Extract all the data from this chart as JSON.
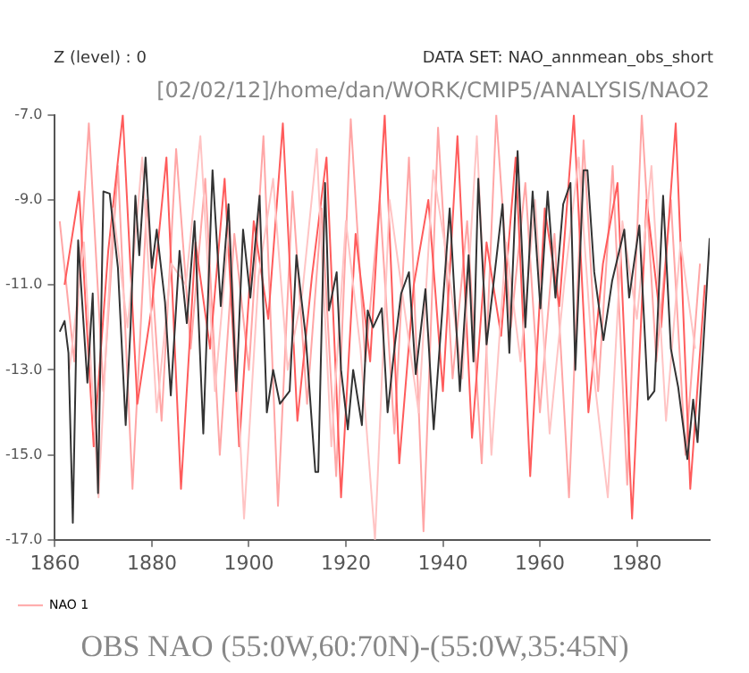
{
  "chart_data": {
    "type": "line",
    "title": "OBS NAO (55:0W,60:70N)-(55:0W,35:45N)",
    "subtitle": "[02/02/12]/home/dan/WORK/CMIP5/ANALYSIS/NAO2",
    "annotations": [
      "Z (level) : 0",
      "DATA SET: NAO_annmean_obs_short"
    ],
    "xlim": [
      1860,
      1995
    ],
    "xticks": [
      1860,
      1880,
      1900,
      1920,
      1940,
      1960,
      1980
    ],
    "ylim": [
      -17,
      -7
    ],
    "yticks": [
      {
        "value": -17,
        "label": "-17.0"
      },
      {
        "value": -15,
        "label": "-15.0"
      },
      {
        "value": -13,
        "label": "-13.0"
      },
      {
        "value": -11,
        "label": "-11.0"
      },
      {
        "value": -9,
        "label": "-9.0"
      },
      {
        "value": -7,
        "label": "-7.0"
      }
    ],
    "grid": false,
    "legend": "bottom left",
    "marker": "none",
    "line_style": "solid",
    "series": [
      {
        "name": "NAO 1",
        "color": "#ffa6a6",
        "x": [
          1861,
          1864,
          1867,
          1870,
          1873,
          1876,
          1879,
          1882,
          1885,
          1888,
          1891,
          1894,
          1897,
          1900,
          1903,
          1906,
          1909,
          1912,
          1915,
          1918,
          1921,
          1924,
          1927,
          1930,
          1933,
          1936,
          1939,
          1942,
          1945,
          1948,
          1951,
          1954,
          1957,
          1960,
          1963,
          1966,
          1969,
          1972,
          1975,
          1978,
          1981,
          1984,
          1987,
          1990,
          1993
        ],
        "values": [
          -9.5,
          -12.8,
          -7.2,
          -13.5,
          -8.2,
          -15.8,
          -9.0,
          -14.2,
          -7.8,
          -12.5,
          -8.5,
          -15.0,
          -9.8,
          -13.0,
          -7.5,
          -16.2,
          -8.8,
          -13.8,
          -9.2,
          -15.5,
          -7.1,
          -12.8,
          -9.0,
          -14.5,
          -8.0,
          -16.8,
          -7.3,
          -13.2,
          -9.5,
          -15.2,
          -7.0,
          -12.0,
          -8.6,
          -14.0,
          -9.8,
          -16.0,
          -7.6,
          -13.5,
          -8.2,
          -15.7,
          -7.0,
          -12.8,
          -9.0,
          -15.0,
          -10.5
        ]
      },
      {
        "color": "#ff5c5c",
        "x": [
          1862,
          1865,
          1868,
          1871,
          1874,
          1877,
          1880,
          1883,
          1886,
          1889,
          1892,
          1895,
          1898,
          1901,
          1904,
          1907,
          1910,
          1913,
          1916,
          1919,
          1922,
          1925,
          1928,
          1931,
          1934,
          1937,
          1940,
          1943,
          1946,
          1949,
          1952,
          1955,
          1958,
          1961,
          1964,
          1967,
          1970,
          1973,
          1976,
          1979,
          1982,
          1985,
          1988,
          1991,
          1994
        ],
        "values": [
          -11.0,
          -8.8,
          -14.8,
          -10.2,
          -7.0,
          -13.8,
          -11.5,
          -8.0,
          -15.8,
          -10.0,
          -12.5,
          -8.5,
          -14.8,
          -9.5,
          -11.8,
          -7.2,
          -14.2,
          -10.8,
          -8.0,
          -16.0,
          -9.8,
          -12.8,
          -7.0,
          -15.2,
          -11.0,
          -9.0,
          -13.5,
          -7.5,
          -14.6,
          -10.0,
          -12.2,
          -8.0,
          -15.5,
          -9.2,
          -11.5,
          -7.0,
          -14.0,
          -10.5,
          -8.6,
          -16.5,
          -9.0,
          -12.0,
          -7.2,
          -15.8,
          -11.0
        ]
      },
      {
        "color": "#ffc4c4",
        "x": [
          1863,
          1866,
          1869,
          1872,
          1875,
          1878,
          1881,
          1884,
          1887,
          1890,
          1893,
          1896,
          1899,
          1902,
          1905,
          1908,
          1911,
          1914,
          1917,
          1920,
          1923,
          1926,
          1929,
          1932,
          1935,
          1938,
          1941,
          1944,
          1947,
          1950,
          1953,
          1956,
          1959,
          1962,
          1965,
          1968,
          1971,
          1974,
          1977,
          1980,
          1983,
          1986,
          1989,
          1992
        ],
        "values": [
          -13.0,
          -10.0,
          -16.0,
          -9.2,
          -12.0,
          -8.0,
          -14.0,
          -10.5,
          -11.0,
          -7.5,
          -13.5,
          -9.5,
          -16.5,
          -10.8,
          -8.5,
          -13.0,
          -11.2,
          -7.8,
          -14.8,
          -9.5,
          -12.5,
          -17.0,
          -9.0,
          -11.5,
          -14.0,
          -8.3,
          -10.5,
          -13.2,
          -7.5,
          -15.0,
          -10.0,
          -12.8,
          -9.0,
          -14.5,
          -11.0,
          -8.0,
          -13.0,
          -16.0,
          -9.5,
          -11.8,
          -8.2,
          -14.2,
          -10.0,
          -12.5
        ]
      },
      {
        "color": "#333333",
        "x": [
          1861,
          1862,
          1862.8,
          1863.7,
          1864.8,
          1866.7,
          1867.8,
          1868.9,
          1870,
          1871.3,
          1873,
          1874.6,
          1875.6,
          1876.6,
          1877.4,
          1878.7,
          1880,
          1881,
          1882.7,
          1883.9,
          1885.7,
          1887.2,
          1888.8,
          1890.6,
          1892.5,
          1894.2,
          1895.8,
          1897.4,
          1898.8,
          1900.3,
          1902.2,
          1903.7,
          1905,
          1906.4,
          1908.4,
          1909.8,
          1911.7,
          1913.7,
          1914.3,
          1915.7,
          1916.5,
          1918.1,
          1919,
          1920.4,
          1921.5,
          1923.3,
          1924.5,
          1925.6,
          1927.4,
          1928.6,
          1930.1,
          1931.4,
          1933,
          1934.4,
          1936.4,
          1938.1,
          1941.4,
          1943.5,
          1945.3,
          1946.3,
          1947.3,
          1949,
          1952.3,
          1953.7,
          1955.4,
          1957,
          1958.5,
          1960.1,
          1961.6,
          1963.2,
          1964.8,
          1966.3,
          1967.3,
          1969,
          1969.8,
          1971.2,
          1973.1,
          1974.9,
          1977.4,
          1978.4,
          1980.5,
          1982.3,
          1983.6,
          1985.4,
          1987,
          1988.5,
          1990.4,
          1991.6,
          1992.5,
          1993.7,
          1995
        ],
        "values": [
          -12.1,
          -11.85,
          -12.6,
          -16.6,
          -9.95,
          -13.3,
          -11.2,
          -15.9,
          -8.8,
          -8.85,
          -10.6,
          -14.3,
          -12.0,
          -8.9,
          -10.3,
          -8.0,
          -10.6,
          -9.7,
          -11.4,
          -13.6,
          -10.2,
          -11.9,
          -9.5,
          -14.5,
          -8.3,
          -11.5,
          -9.1,
          -13.5,
          -9.7,
          -11.3,
          -8.9,
          -14.0,
          -13.0,
          -13.8,
          -13.5,
          -10.3,
          -12.2,
          -15.4,
          -15.4,
          -8.6,
          -11.6,
          -10.7,
          -13.0,
          -14.4,
          -13.0,
          -14.3,
          -11.6,
          -12.0,
          -11.55,
          -14.0,
          -12.4,
          -11.2,
          -10.7,
          -13.1,
          -11.1,
          -14.4,
          -9.2,
          -13.5,
          -10.3,
          -12.8,
          -8.5,
          -12.4,
          -9.1,
          -12.6,
          -7.85,
          -12.0,
          -8.8,
          -11.55,
          -8.8,
          -11.3,
          -9.1,
          -8.6,
          -13.0,
          -8.3,
          -8.3,
          -10.7,
          -12.3,
          -10.9,
          -9.7,
          -11.3,
          -9.6,
          -13.7,
          -13.5,
          -8.9,
          -12.5,
          -13.4,
          -15.1,
          -13.7,
          -14.7,
          -12.4,
          -9.9
        ]
      }
    ]
  }
}
